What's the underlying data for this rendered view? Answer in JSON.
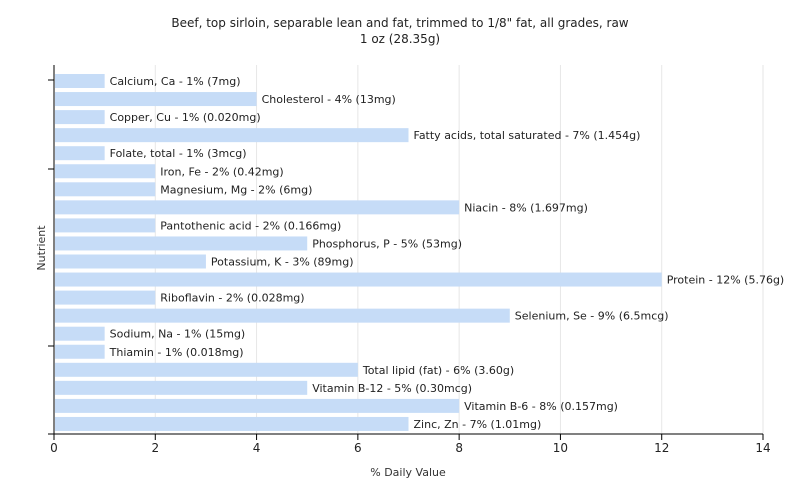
{
  "chart_data": {
    "type": "bar",
    "orientation": "horizontal",
    "title": "Beef, top sirloin, separable lean and fat, trimmed to 1/8\" fat, all grades, raw",
    "subtitle": "1 oz (28.35g)",
    "xlabel": "% Daily Value",
    "ylabel": "Nutrient",
    "xlim": [
      0,
      14
    ],
    "xticks": [
      0,
      2,
      4,
      6,
      8,
      10,
      12,
      14
    ],
    "grid": true,
    "bar_color": "#c6dcf7",
    "categories": [
      "Calcium, Ca",
      "Cholesterol",
      "Copper, Cu",
      "Fatty acids, total saturated",
      "Folate, total",
      "Iron, Fe",
      "Magnesium, Mg",
      "Niacin",
      "Pantothenic acid",
      "Phosphorus, P",
      "Potassium, K",
      "Protein",
      "Riboflavin",
      "Selenium, Se",
      "Sodium, Na",
      "Thiamin",
      "Total lipid (fat)",
      "Vitamin B-12",
      "Vitamin B-6",
      "Zinc, Zn"
    ],
    "values": [
      1,
      4,
      1,
      7,
      1,
      2,
      2,
      8,
      2,
      5,
      3,
      12,
      2,
      9,
      1,
      1,
      6,
      5,
      8,
      7
    ],
    "labels": [
      "Calcium, Ca - 1% (7mg)",
      "Cholesterol - 4% (13mg)",
      "Copper, Cu - 1% (0.020mg)",
      "Fatty acids, total saturated - 7% (1.454g)",
      "Folate, total - 1% (3mcg)",
      "Iron, Fe - 2% (0.42mg)",
      "Magnesium, Mg - 2% (6mg)",
      "Niacin - 8% (1.697mg)",
      "Pantothenic acid - 2% (0.166mg)",
      "Phosphorus, P - 5% (53mg)",
      "Potassium, K - 3% (89mg)",
      "Protein - 12% (5.76g)",
      "Riboflavin - 2% (0.028mg)",
      "Selenium, Se - 9% (6.5mcg)",
      "Sodium, Na - 1% (15mg)",
      "Thiamin - 1% (0.018mg)",
      "Total lipid (fat) - 6% (3.60g)",
      "Vitamin B-12 - 5% (0.30mcg)",
      "Vitamin B-6 - 8% (0.157mg)",
      "Zinc, Zn - 7% (1.01mg)"
    ]
  }
}
